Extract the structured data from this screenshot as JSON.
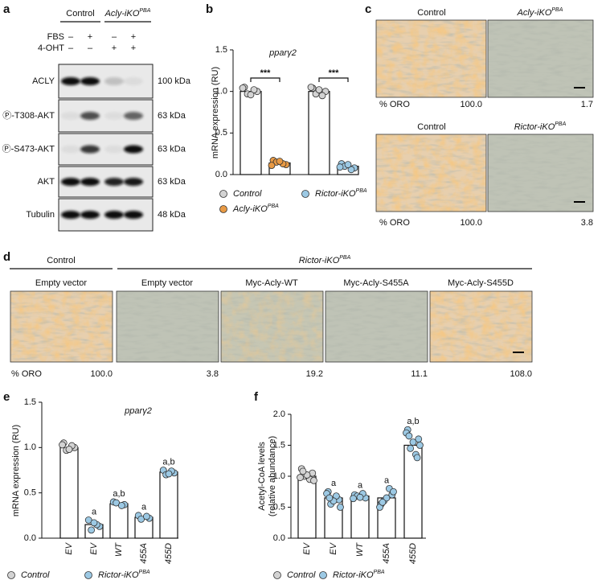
{
  "panel_labels": [
    "a",
    "b",
    "c",
    "d",
    "e",
    "f"
  ],
  "panel_a": {
    "groups": [
      {
        "text": "Control"
      },
      {
        "text": "Acly-iKO",
        "sup": "PBA"
      }
    ],
    "treatments": [
      {
        "name": "FBS",
        "signs": [
          "–",
          "+",
          "–",
          "+"
        ]
      },
      {
        "name": "4-OHT",
        "signs": [
          "–",
          "–",
          "+",
          "+"
        ]
      }
    ],
    "bands": [
      {
        "name": "ACLY",
        "size": "100 kDa"
      },
      {
        "name": "Ⓟ-T308-AKT",
        "size": "63 kDa"
      },
      {
        "name": "Ⓟ-S473-AKT",
        "size": "63 kDa"
      },
      {
        "name": "AKT",
        "size": "63 kDa"
      },
      {
        "name": "Tubulin",
        "size": "48 kDa"
      }
    ]
  },
  "panel_c": {
    "rows": [
      {
        "labels": [
          {
            "text": "Control"
          },
          {
            "text": "Acly-iKO",
            "sup": "PBA"
          }
        ],
        "caption": "% ORO",
        "values": [
          "100.0",
          "1.7"
        ]
      },
      {
        "labels": [
          {
            "text": "Control"
          },
          {
            "text": "Rictor-iKO",
            "sup": "PBA"
          }
        ],
        "caption": "% ORO",
        "values": [
          "100.0",
          "3.8"
        ]
      }
    ]
  },
  "panel_d": {
    "groups": [
      {
        "text": "Control"
      },
      {
        "text": "Rictor-iKO",
        "sup": "PBA"
      }
    ],
    "labels": [
      "Empty vector",
      "Empty vector",
      "Myc-Acly-WT",
      "Myc-Acly-S455A",
      "Myc-Acly-S455D"
    ],
    "caption": "% ORO",
    "values": [
      "100.0",
      "3.8",
      "19.2",
      "11.1",
      "108.0"
    ]
  },
  "chart_data": [
    {
      "type": "bar",
      "title": "pparγ2",
      "ylabel": "mRNA expression (RU)",
      "categories": [
        null,
        null,
        null,
        null
      ],
      "ylim": [
        0,
        1.5
      ],
      "yticks": [
        {
          "value": 0,
          "label": "0.0"
        },
        {
          "value": 0.5,
          "label": "0.5"
        },
        {
          "value": 1,
          "label": "1.0"
        },
        {
          "value": 1.5,
          "label": "1.5"
        }
      ],
      "significance": [
        "***",
        "***"
      ],
      "series": [
        {
          "name": "Control",
          "color": "#d3d3d3",
          "values": [
            1.0,
            null,
            1.0,
            null
          ],
          "points": [
            [
              1.05,
              1.0,
              0.97,
              1.02,
              0.96,
              1.04
            ],
            null,
            [
              1.04,
              1.0,
              0.97,
              0.95,
              1.02,
              1.05
            ],
            null
          ]
        },
        {
          "name": "Acly-iKO",
          "name_sup": "PBA",
          "color": "#e89a45",
          "values": [
            null,
            0.14,
            null,
            null
          ],
          "points": [
            null,
            [
              0.17,
              0.12,
              0.15,
              0.13,
              0.16,
              0.11
            ],
            null,
            null
          ]
        },
        {
          "name": "Rictor-iKO",
          "name_sup": "PBA",
          "color": "#9cc9e4",
          "values": [
            null,
            null,
            null,
            0.1
          ],
          "points": [
            null,
            null,
            null,
            [
              0.13,
              0.08,
              0.1,
              0.06,
              0.12,
              0.09
            ]
          ]
        }
      ]
    },
    {
      "type": "bar",
      "title": "pparγ2",
      "ylabel": "mRNA expression (RU)",
      "categories": [
        "EV",
        "EV",
        "WT",
        "455A",
        "455D"
      ],
      "ylim": [
        0,
        1.5
      ],
      "yticks": [
        {
          "value": 0,
          "label": "0.0"
        },
        {
          "value": 0.5,
          "label": "0.5"
        },
        {
          "value": 1,
          "label": "1.0"
        },
        {
          "value": 1.5,
          "label": "1.5"
        }
      ],
      "annotations": [
        null,
        "a",
        "a,b",
        "a",
        "a,b"
      ],
      "series": [
        {
          "name": "Control",
          "color": "#d3d3d3",
          "values": [
            1.0,
            null,
            null,
            null,
            null
          ],
          "points": [
            [
              1.05,
              1.0,
              0.97,
              1.02,
              0.98,
              1.03
            ],
            null,
            null,
            null,
            null
          ]
        },
        {
          "name": "Rictor-iKO",
          "name_sup": "PBA",
          "color": "#9cc9e4",
          "values": [
            null,
            0.15,
            0.38,
            0.23,
            0.73
          ],
          "points": [
            null,
            [
              0.2,
              0.13,
              0.09,
              0.15,
              0.17
            ],
            [
              0.4,
              0.37,
              0.39,
              0.36
            ],
            [
              0.25,
              0.22,
              0.21,
              0.24
            ],
            [
              0.75,
              0.72,
              0.7,
              0.74,
              0.71
            ]
          ]
        }
      ]
    },
    {
      "type": "bar",
      "ylabel": [
        "Acetyl-CoA levels",
        "(relative abundance)"
      ],
      "categories": [
        "EV",
        "EV",
        "WT",
        "455A",
        "455D"
      ],
      "ylim": [
        0,
        2
      ],
      "yticks": [
        {
          "value": 0,
          "label": "0.0"
        },
        {
          "value": 0.5,
          "label": "0.5"
        },
        {
          "value": 1,
          "label": "1.0"
        },
        {
          "value": 1.5,
          "label": "1.5"
        },
        {
          "value": 2,
          "label": "2.0"
        }
      ],
      "annotations": [
        null,
        "a",
        "a",
        "a",
        "a,b"
      ],
      "series": [
        {
          "name": "Control",
          "color": "#d3d3d3",
          "values": [
            1.0,
            null,
            null,
            null,
            null
          ],
          "points": [
            [
              1.12,
              1.05,
              1.0,
              0.95,
              1.02,
              0.98,
              0.93,
              1.08
            ],
            null,
            null,
            null,
            null
          ]
        },
        {
          "name": "Rictor-iKO",
          "name_sup": "PBA",
          "color": "#9cc9e4",
          "values": [
            null,
            0.65,
            0.68,
            0.65,
            1.5
          ],
          "points": [
            null,
            [
              0.75,
              0.62,
              0.55,
              0.68,
              0.6,
              0.72,
              0.5,
              0.65
            ],
            [
              0.7,
              0.65,
              0.68,
              0.72,
              0.66,
              0.64
            ],
            [
              0.55,
              0.7,
              0.6,
              0.8,
              0.65,
              0.5,
              0.75,
              0.58
            ],
            [
              1.75,
              1.6,
              1.45,
              1.35,
              1.55,
              1.7,
              1.5,
              1.65,
              1.3
            ]
          ]
        }
      ]
    }
  ]
}
